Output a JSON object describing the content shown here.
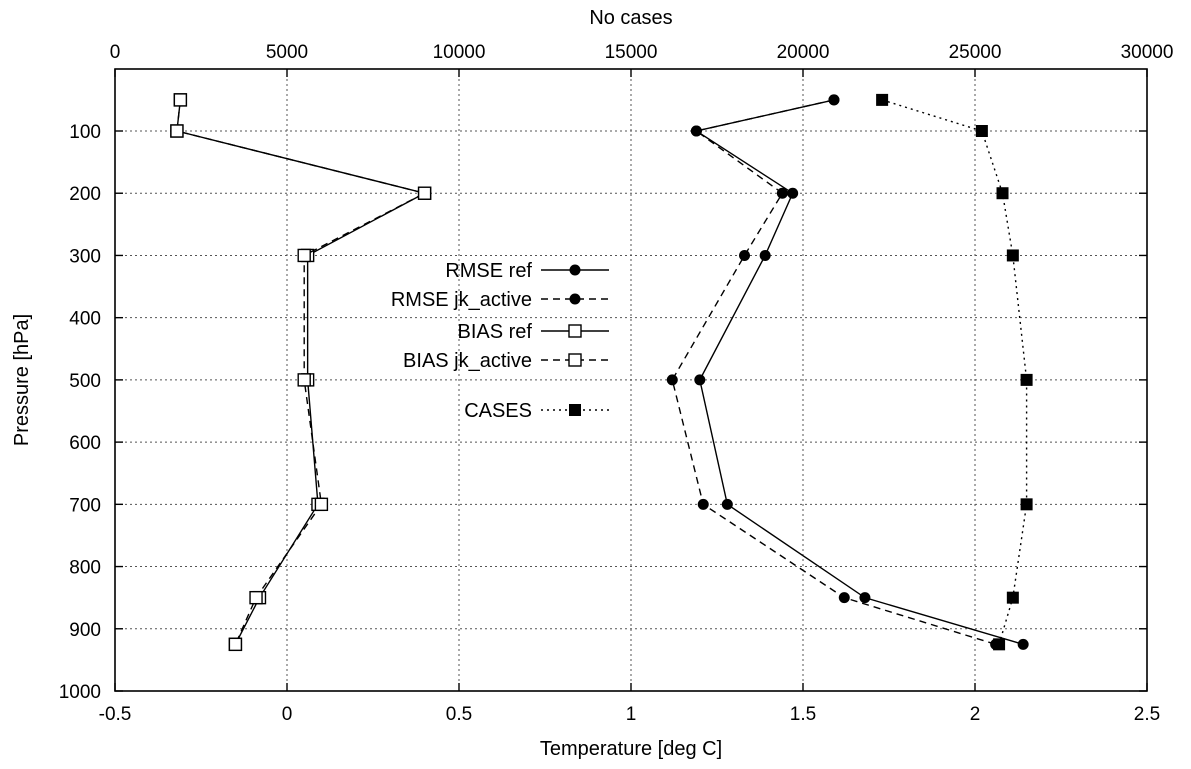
{
  "chart_data": {
    "type": "line",
    "title": "",
    "xlabel": "Temperature [deg C]",
    "x2label": "No cases",
    "ylabel": "Pressure [hPa]",
    "xlim": [
      -0.5,
      2.5
    ],
    "x2lim": [
      0,
      30000
    ],
    "ylim": [
      1000,
      30
    ],
    "xticks": [
      "-0.5",
      "0",
      "0.5",
      "1",
      "1.5",
      "2",
      "2.5"
    ],
    "x2ticks": [
      "0",
      "5000",
      "10000",
      "15000",
      "20000",
      "25000",
      "30000"
    ],
    "yticks": [
      "100",
      "200",
      "300",
      "400",
      "500",
      "600",
      "700",
      "800",
      "900",
      "1000"
    ],
    "grid": true,
    "legend_position": "center-left",
    "series": [
      {
        "name": "RMSE ref",
        "axis": "bottom",
        "marker": "filled-circle",
        "line": "solid",
        "pressure": [
          50,
          100,
          200,
          300,
          500,
          700,
          850,
          925
        ],
        "values": [
          1.59,
          1.19,
          1.47,
          1.39,
          1.2,
          1.28,
          1.68,
          2.14
        ]
      },
      {
        "name": "RMSE jk_active",
        "axis": "bottom",
        "marker": "filled-circle",
        "line": "dashed",
        "pressure": [
          50,
          100,
          200,
          300,
          500,
          700,
          850,
          925
        ],
        "values": [
          1.59,
          1.19,
          1.44,
          1.33,
          1.12,
          1.21,
          1.62,
          2.06
        ]
      },
      {
        "name": "BIAS ref",
        "axis": "bottom",
        "marker": "open-square",
        "line": "solid",
        "pressure": [
          50,
          100,
          200,
          300,
          500,
          700,
          850,
          925
        ],
        "values": [
          -0.31,
          -0.32,
          0.4,
          0.06,
          0.06,
          0.09,
          -0.08,
          -0.15
        ]
      },
      {
        "name": "BIAS jk_active",
        "axis": "bottom",
        "marker": "open-square",
        "line": "dashed",
        "pressure": [
          50,
          100,
          200,
          300,
          500,
          700,
          850,
          925
        ],
        "values": [
          -0.31,
          -0.32,
          0.4,
          0.05,
          0.05,
          0.1,
          -0.09,
          -0.15
        ]
      },
      {
        "name": "CASES",
        "axis": "top",
        "marker": "filled-square",
        "line": "dotted",
        "pressure": [
          50,
          100,
          200,
          300,
          500,
          700,
          850,
          925
        ],
        "values": [
          22300,
          25200,
          25800,
          26100,
          26500,
          26500,
          26100,
          25700
        ]
      }
    ]
  }
}
